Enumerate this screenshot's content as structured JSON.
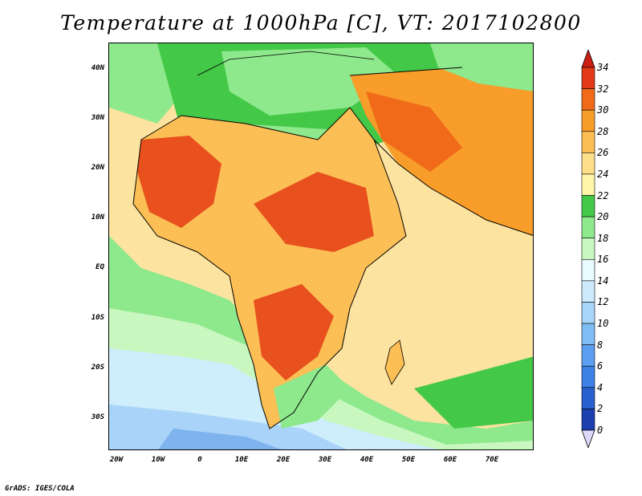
{
  "title": "Temperature at 1000hPa [C], VT: 2017102800",
  "credit": "GrADS: IGES/COLA",
  "lat_ticks": [
    "40N",
    "30N",
    "20N",
    "10N",
    "EQ",
    "10S",
    "20S",
    "30S"
  ],
  "lon_ticks": [
    "20W",
    "10W",
    "0",
    "10E",
    "20E",
    "30E",
    "40E",
    "50E",
    "60E",
    "70E"
  ],
  "colorbar": {
    "labels": [
      "0",
      "2",
      "4",
      "6",
      "8",
      "10",
      "12",
      "14",
      "16",
      "18",
      "20",
      "22",
      "24",
      "26",
      "28",
      "30",
      "32",
      "34"
    ],
    "colors": [
      "#1f1f8f",
      "#1c3fb0",
      "#2a5fd0",
      "#3d80e6",
      "#5c9ef0",
      "#80bdf5",
      "#a8d6fb",
      "#cdeafc",
      "#e8fbff",
      "#c8f7c0",
      "#8ee88c",
      "#44c848",
      "#fff6a8",
      "#fee08b",
      "#fbbf55",
      "#f89c2a",
      "#f06a19",
      "#e23a18",
      "#cc1f14"
    ]
  },
  "map": {
    "ocean_cold_color": "#7fb3ee",
    "ocean_cool_color": "#a9d3f8",
    "ocean_mild_color": "#cdeefa",
    "ocean_warm_color": "#fce3a0",
    "land_hot_color": "#e8501e",
    "land_warm_color": "#f4a03a",
    "land_green_color": "#44c848"
  }
}
